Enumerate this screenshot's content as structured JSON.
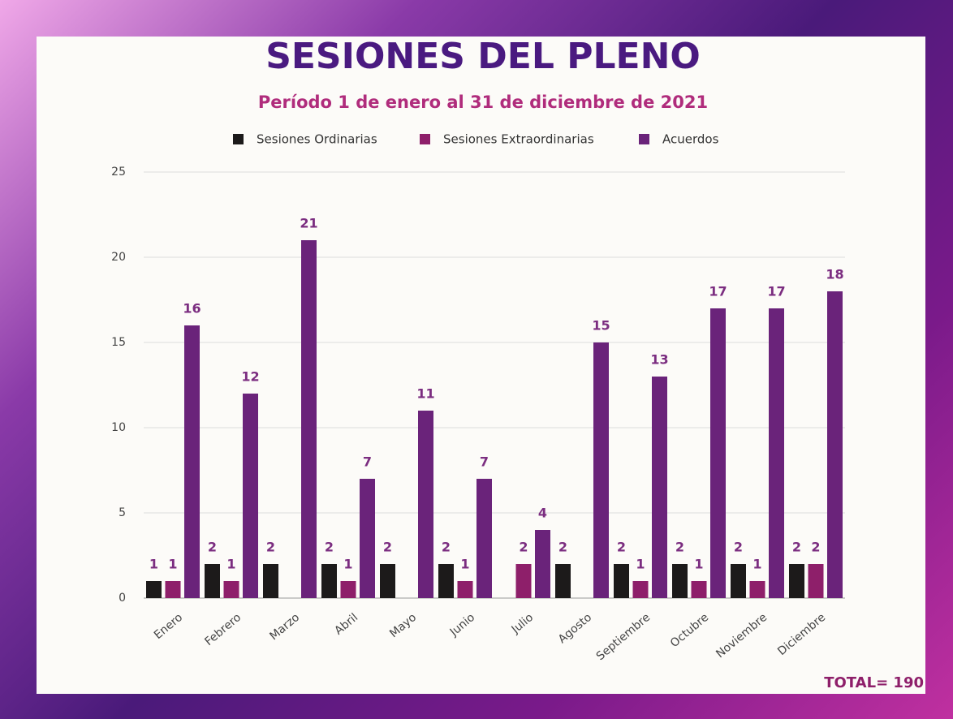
{
  "chart_data": {
    "type": "bar",
    "title": "SESIONES DEL PLENO",
    "subtitle": "Período 1 de enero al 31 de diciembre de 2021",
    "annotation": "TOTAL= 190",
    "categories": [
      "Enero",
      "Febrero",
      "Marzo",
      "Abril",
      "Mayo",
      "Junio",
      "Julio",
      "Agosto",
      "Septiembre",
      "Octubre",
      "Noviembre",
      "Diciembre"
    ],
    "series": [
      {
        "name": "Sesiones Ordinarias",
        "color": "#1c1a1a",
        "values": [
          1,
          2,
          2,
          2,
          2,
          2,
          null,
          2,
          2,
          2,
          2,
          2
        ]
      },
      {
        "name": "Sesiones Extraordinarias",
        "color": "#8e1f6a",
        "values": [
          1,
          1,
          null,
          1,
          null,
          1,
          2,
          null,
          1,
          1,
          1,
          2
        ]
      },
      {
        "name": "Acuerdos",
        "color": "#6a237a",
        "values": [
          16,
          12,
          21,
          7,
          11,
          7,
          4,
          15,
          13,
          17,
          17,
          18
        ]
      }
    ],
    "ylim": [
      0,
      25
    ],
    "yticks": [
      0,
      5,
      10,
      15,
      20,
      25
    ],
    "grid": true,
    "legend": "top"
  }
}
